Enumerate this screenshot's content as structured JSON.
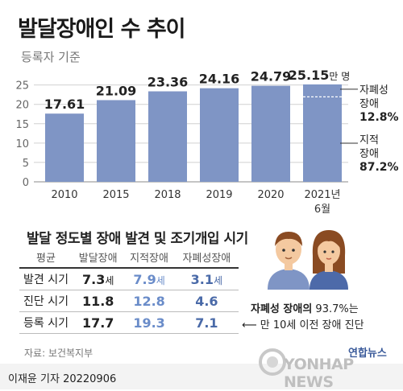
{
  "header": {
    "title": "발달장애인 수 추이",
    "subtitle": "등록자 기준"
  },
  "chart_data": {
    "type": "bar",
    "categories": [
      "2010",
      "2015",
      "2018",
      "2019",
      "2020",
      "2021년 6월"
    ],
    "values": [
      17.61,
      21.09,
      23.36,
      24.16,
      24.79,
      25.15
    ],
    "value_labels": [
      "17.61",
      "21.09",
      "23.36",
      "24.16",
      "24.79",
      "25.15"
    ],
    "last_unit": "만 명",
    "yticks": [
      0,
      5,
      10,
      15,
      20,
      25
    ],
    "ylim": [
      0,
      27
    ],
    "grid": true,
    "bar_color": "#7f95c5",
    "breakdown": [
      {
        "label": "자폐성 장애",
        "value": "12.8%"
      },
      {
        "label": "지적 장애",
        "value": "87.2%"
      }
    ]
  },
  "table": {
    "title": "발달 정도별 장애 발견 및 조기개입 시기",
    "headers": [
      "평균",
      "발달장애",
      "지적장애",
      "자폐성장애"
    ],
    "rows": [
      {
        "label": "발견 시기",
        "values": [
          "7.3",
          "7.9",
          "3.1"
        ]
      },
      {
        "label": "진단 시기",
        "values": [
          "11.8",
          "12.8",
          "4.6"
        ]
      },
      {
        "label": "등록 시기",
        "values": [
          "17.7",
          "19.3",
          "7.1"
        ]
      }
    ],
    "unit": "세"
  },
  "note": {
    "strong": "자폐성 장애의",
    "percent": " 93.7%는",
    "line2": "만 10세 이전 장애 진단"
  },
  "source": "자료: 보건복지부",
  "footer": {
    "reporter": "이재윤 기자  20220906",
    "logo_kr": "연합뉴스",
    "logo_en": "YONHAP NEWS"
  }
}
